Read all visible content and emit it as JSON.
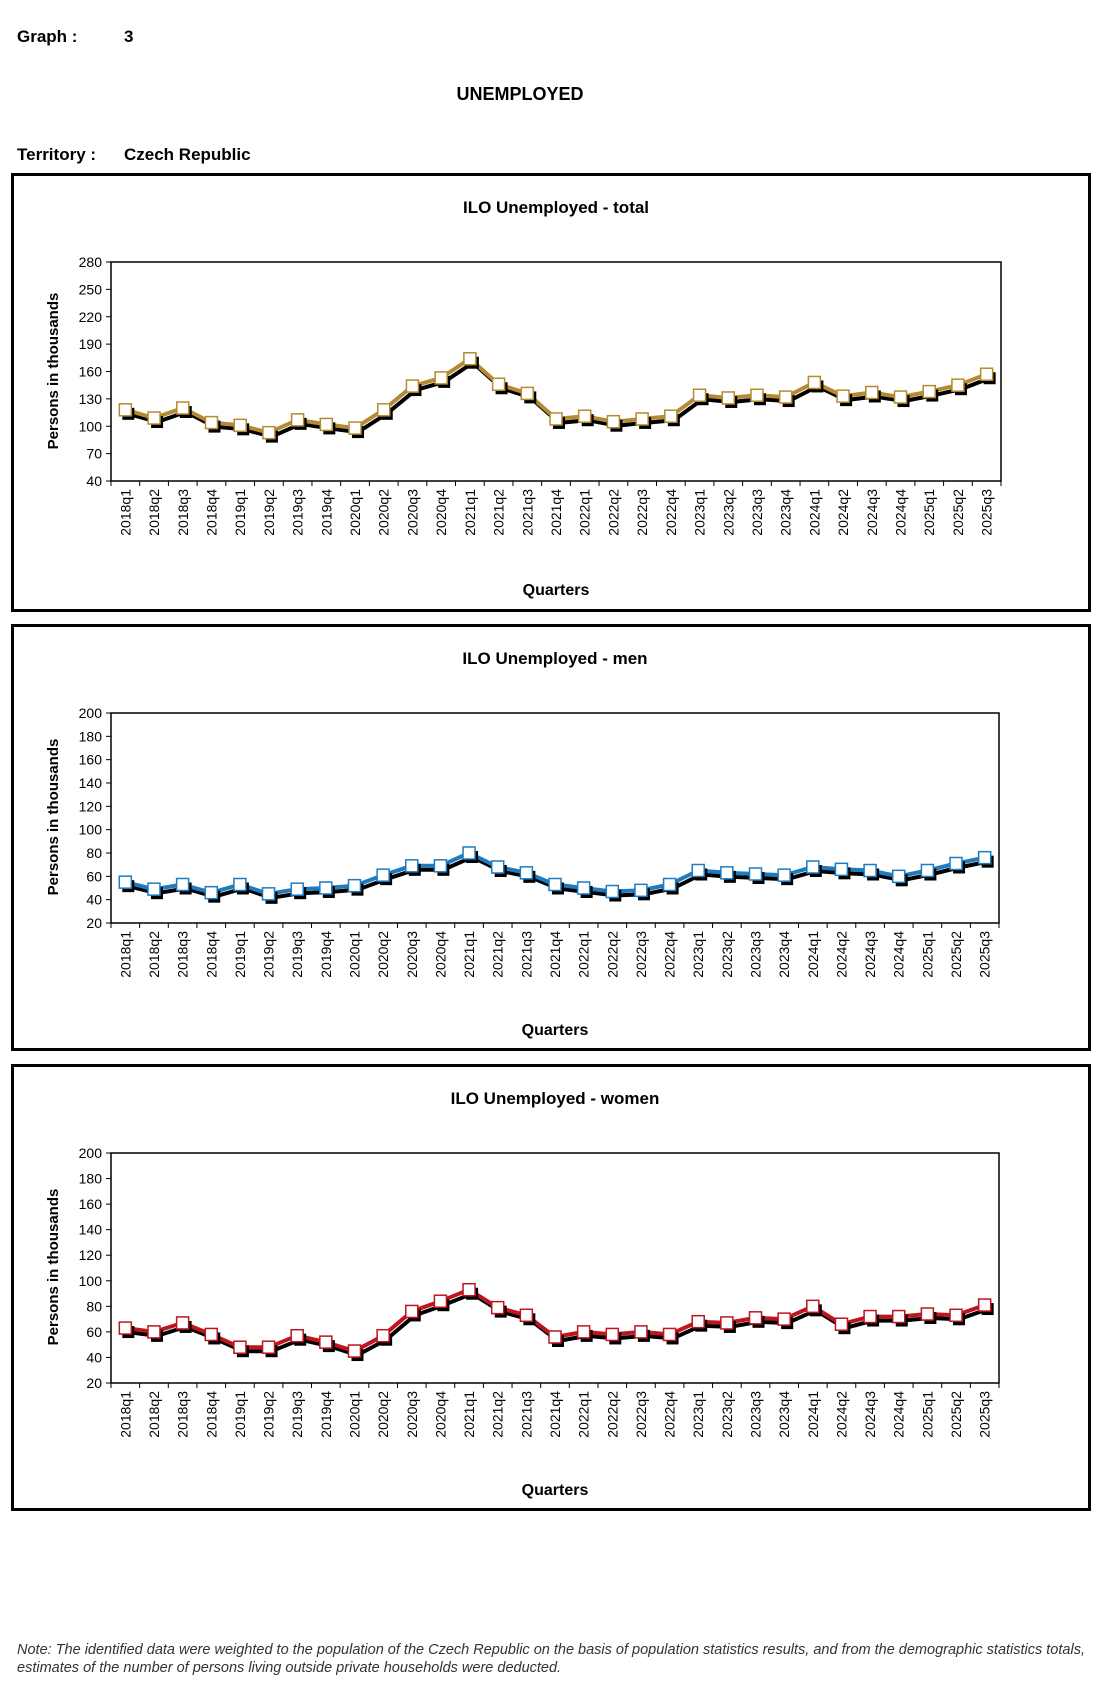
{
  "header": {
    "graph_label": "Graph :",
    "graph_number": "3",
    "title": "UNEMPLOYED",
    "territory_label": "Territory :",
    "territory_value": "Czech Republic"
  },
  "note": "Note: The identified data were weighted to the population of the Czech Republic on the basis of population statistics results, and from the demographic statistics totals, estimates of the number of persons living outside private households were deducted.",
  "chart_data": [
    {
      "type": "line",
      "title": "ILO Unemployed  - total",
      "xlabel": "Quarters",
      "ylabel": "Persons in thousands",
      "ylim": [
        40,
        280
      ],
      "yticks": [
        40,
        70,
        100,
        130,
        160,
        190,
        220,
        250,
        280
      ],
      "color": "#B58A32",
      "categories": [
        "2018q1",
        "2018q2",
        "2018q3",
        "2018q4",
        "2019q1",
        "2019q2",
        "2019q3",
        "2019q4",
        "2020q1",
        "2020q2",
        "2020q3",
        "2020q4",
        "2021q1",
        "2021q2",
        "2021q3",
        "2021q4",
        "2022q1",
        "2022q2",
        "2022q3",
        "2022q4",
        "2023q1",
        "2023q2",
        "2023q3",
        "2023q4",
        "2024q1",
        "2024q2",
        "2024q3",
        "2024q4",
        "2025q1",
        "2025q2",
        "2025q3"
      ],
      "series": [
        {
          "name": "ILO Unemployed - total",
          "values": [
            118,
            109,
            120,
            104,
            101,
            93,
            107,
            102,
            98,
            118,
            144,
            153,
            174,
            146,
            136,
            108,
            111,
            105,
            108,
            111,
            134,
            131,
            134,
            132,
            148,
            133,
            137,
            132,
            138,
            145,
            157
          ]
        }
      ]
    },
    {
      "type": "line",
      "title": "ILO Unemployed  - men",
      "xlabel": "Quarters",
      "ylabel": "Persons in thousands",
      "ylim": [
        20,
        200
      ],
      "yticks": [
        20,
        40,
        60,
        80,
        100,
        120,
        140,
        160,
        180,
        200
      ],
      "color": "#1F7BC0",
      "categories": [
        "2018q1",
        "2018q2",
        "2018q3",
        "2018q4",
        "2019q1",
        "2019q2",
        "2019q3",
        "2019q4",
        "2020q1",
        "2020q2",
        "2020q3",
        "2020q4",
        "2021q1",
        "2021q2",
        "2021q3",
        "2021q4",
        "2022q1",
        "2022q2",
        "2022q3",
        "2022q4",
        "2023q1",
        "2023q2",
        "2023q3",
        "2023q4",
        "2024q1",
        "2024q2",
        "2024q3",
        "2024q4",
        "2025q1",
        "2025q2",
        "2025q3"
      ],
      "series": [
        {
          "name": "ILO Unemployed - men",
          "values": [
            55,
            49,
            53,
            46,
            53,
            45,
            49,
            50,
            52,
            61,
            69,
            69,
            80,
            68,
            63,
            53,
            50,
            47,
            48,
            53,
            65,
            63,
            62,
            61,
            68,
            66,
            65,
            60,
            65,
            71,
            76
          ]
        }
      ]
    },
    {
      "type": "line",
      "title": "ILO Unemployed  - women",
      "xlabel": "Quarters",
      "ylabel": "Persons in thousands",
      "ylim": [
        20,
        200
      ],
      "yticks": [
        20,
        40,
        60,
        80,
        100,
        120,
        140,
        160,
        180,
        200
      ],
      "color": "#C0141E",
      "categories": [
        "2018q1",
        "2018q2",
        "2018q3",
        "2018q4",
        "2019q1",
        "2019q2",
        "2019q3",
        "2019q4",
        "2020q1",
        "2020q2",
        "2020q3",
        "2020q4",
        "2021q1",
        "2021q2",
        "2021q3",
        "2021q4",
        "2022q1",
        "2022q2",
        "2022q3",
        "2022q4",
        "2023q1",
        "2023q2",
        "2023q3",
        "2023q4",
        "2024q1",
        "2024q2",
        "2024q3",
        "2024q4",
        "2025q1",
        "2025q2",
        "2025q3"
      ],
      "series": [
        {
          "name": "ILO Unemployed - women",
          "values": [
            63,
            60,
            67,
            58,
            48,
            48,
            57,
            52,
            45,
            57,
            76,
            84,
            93,
            79,
            73,
            56,
            60,
            58,
            60,
            58,
            68,
            67,
            71,
            70,
            80,
            66,
            72,
            72,
            74,
            73,
            81
          ]
        }
      ]
    }
  ]
}
